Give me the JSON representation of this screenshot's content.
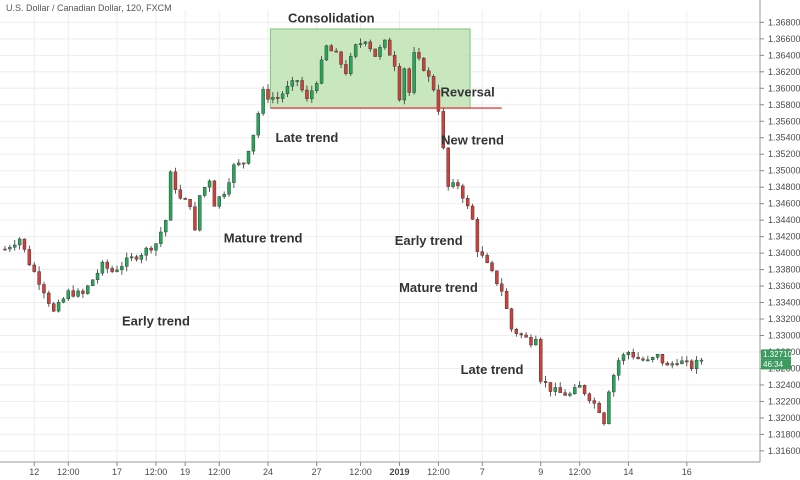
{
  "chart_data": {
    "type": "candlestick",
    "symbol_label": "U.S. Dollar / Canadian Dollar, 120, FXCM",
    "ylim": [
      1.3155,
      1.3695
    ],
    "xlim": [
      0,
      154
    ],
    "y_ticks": [
      "1.36800",
      "1.36600",
      "1.36400",
      "1.36200",
      "1.36000",
      "1.35800",
      "1.35600",
      "1.35400",
      "1.35200",
      "1.35000",
      "1.34800",
      "1.34600",
      "1.34400",
      "1.34200",
      "1.34000",
      "1.33800",
      "1.33600",
      "1.33400",
      "1.33200",
      "1.33000",
      "1.32800",
      "1.32600",
      "1.32400",
      "1.32200",
      "1.32000",
      "1.31800",
      "1.31600"
    ],
    "x_ticks": [
      {
        "label": "12",
        "x": 6
      },
      {
        "label": "12:00",
        "x": 13
      },
      {
        "label": "17",
        "x": 23
      },
      {
        "label": "12:00",
        "x": 31
      },
      {
        "label": "19",
        "x": 37
      },
      {
        "label": "12:00",
        "x": 44
      },
      {
        "label": "24",
        "x": 54
      },
      {
        "label": "27",
        "x": 64
      },
      {
        "label": "12:00",
        "x": 73
      },
      {
        "label": "2019",
        "x": 81
      },
      {
        "label": "12:00",
        "x": 89
      },
      {
        "label": "7",
        "x": 98
      },
      {
        "label": "9",
        "x": 110
      },
      {
        "label": "12:00",
        "x": 118
      },
      {
        "label": "14",
        "x": 128
      },
      {
        "label": "16",
        "x": 140
      }
    ],
    "current_price": "1.32710",
    "current_tag2": "46:34",
    "annotations": [
      {
        "text": "Consolidation",
        "x": 67,
        "y": 1.368
      },
      {
        "text": "Reversal",
        "x": 95,
        "y": 1.359
      },
      {
        "text": "Late trend",
        "x": 62,
        "y": 1.3535
      },
      {
        "text": "New trend",
        "x": 96,
        "y": 1.3532
      },
      {
        "text": "Mature trend",
        "x": 53,
        "y": 1.3413
      },
      {
        "text": "Early trend",
        "x": 31,
        "y": 1.3312
      },
      {
        "text": "Early trend",
        "x": 87,
        "y": 1.341
      },
      {
        "text": "Mature trend",
        "x": 89,
        "y": 1.3353
      },
      {
        "text": "Late trend",
        "x": 100,
        "y": 1.3253
      }
    ],
    "consolidation_box": {
      "x0": 54.5,
      "x1": 95.5,
      "y0": 1.3576,
      "y1": 1.3672
    },
    "support_line": {
      "x0": 54.5,
      "x1": 102,
      "y": 1.3576
    },
    "waypoints": [
      [
        0,
        1.3405
      ],
      [
        3,
        1.3418
      ],
      [
        5,
        1.3388
      ],
      [
        8,
        1.3355
      ],
      [
        10,
        1.3328
      ],
      [
        13,
        1.3352
      ],
      [
        16,
        1.335
      ],
      [
        18,
        1.3368
      ],
      [
        20,
        1.3385
      ],
      [
        22,
        1.3378
      ],
      [
        25,
        1.339
      ],
      [
        28,
        1.34
      ],
      [
        31,
        1.3412
      ],
      [
        33,
        1.344
      ],
      [
        34,
        1.3495
      ],
      [
        36,
        1.3465
      ],
      [
        38,
        1.346
      ],
      [
        39,
        1.3425
      ],
      [
        40,
        1.347
      ],
      [
        42,
        1.349
      ],
      [
        43,
        1.346
      ],
      [
        45,
        1.3475
      ],
      [
        47,
        1.3505
      ],
      [
        49,
        1.351
      ],
      [
        51,
        1.3545
      ],
      [
        53,
        1.3595
      ],
      [
        54,
        1.359
      ],
      [
        56,
        1.3588
      ],
      [
        58,
        1.36
      ],
      [
        60,
        1.361
      ],
      [
        62,
        1.3585
      ],
      [
        64,
        1.361
      ],
      [
        66,
        1.365
      ],
      [
        68,
        1.364
      ],
      [
        70,
        1.362
      ],
      [
        72,
        1.365
      ],
      [
        74,
        1.366
      ],
      [
        76,
        1.364
      ],
      [
        78,
        1.3655
      ],
      [
        80,
        1.363
      ],
      [
        81,
        1.359
      ],
      [
        82,
        1.3625
      ],
      [
        83,
        1.3595
      ],
      [
        84,
        1.364
      ],
      [
        86,
        1.3625
      ],
      [
        88,
        1.36
      ],
      [
        89,
        1.3575
      ],
      [
        90,
        1.3525
      ],
      [
        91,
        1.348
      ],
      [
        93,
        1.3483
      ],
      [
        94,
        1.347
      ],
      [
        96,
        1.344
      ],
      [
        97,
        1.3405
      ],
      [
        99,
        1.3385
      ],
      [
        101,
        1.3365
      ],
      [
        102,
        1.3355
      ],
      [
        104,
        1.3308
      ],
      [
        106,
        1.33
      ],
      [
        108,
        1.3293
      ],
      [
        109,
        1.33
      ],
      [
        110,
        1.3248
      ],
      [
        112,
        1.3235
      ],
      [
        114,
        1.323
      ],
      [
        116,
        1.3228
      ],
      [
        118,
        1.3238
      ],
      [
        120,
        1.3225
      ],
      [
        122,
        1.321
      ],
      [
        123,
        1.3196
      ],
      [
        124,
        1.3235
      ],
      [
        126,
        1.327
      ],
      [
        128,
        1.328
      ],
      [
        130,
        1.3272
      ],
      [
        132,
        1.3268
      ],
      [
        134,
        1.3275
      ],
      [
        136,
        1.3262
      ],
      [
        138,
        1.327
      ],
      [
        140,
        1.3265
      ],
      [
        141,
        1.3262
      ],
      [
        143,
        1.3271
      ]
    ]
  },
  "colors": {
    "up": "#26a65b",
    "down": "#d0403b",
    "box_fill": "#bfe3b4",
    "box_stroke": "#7fc77a",
    "line": "#e04040",
    "grid": "#eeeeee",
    "axis": "#888888",
    "price_tag": "#3c9a5f"
  }
}
